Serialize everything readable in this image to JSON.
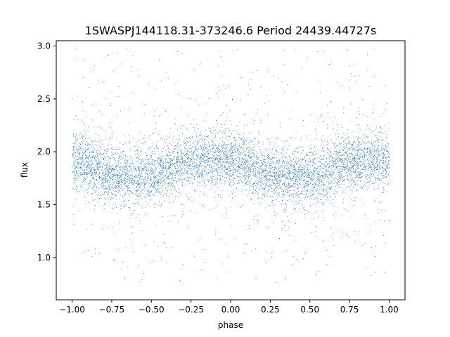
{
  "chart_data": {
    "type": "scatter",
    "title": "1SWASPJ144118.31-373246.6 Period 24439.44727s",
    "xlabel": "phase",
    "ylabel": "flux",
    "xlim": [
      -1.1,
      1.1
    ],
    "ylim": [
      0.6,
      3.05
    ],
    "xticks": [
      -1.0,
      -0.75,
      -0.5,
      -0.25,
      0.0,
      0.25,
      0.5,
      0.75,
      1.0
    ],
    "xtick_labels": [
      "−1.00",
      "−0.75",
      "−0.50",
      "−0.25",
      "0.00",
      "0.25",
      "0.50",
      "0.75",
      "1.00"
    ],
    "yticks": [
      1.0,
      1.5,
      2.0,
      2.5,
      3.0
    ],
    "ytick_labels": [
      "1.0",
      "1.5",
      "2.0",
      "2.5",
      "3.0"
    ],
    "series": [
      {
        "color": "#1f77b4",
        "marker": "point",
        "description_trend": "folded light curve: flux peaks near 1.92 at phase 0 and ±1, dips near 1.78 at phase ±0.5",
        "x": [
          -1.0,
          -0.95,
          -0.9,
          -0.85,
          -0.8,
          -0.75,
          -0.7,
          -0.65,
          -0.6,
          -0.55,
          -0.5,
          -0.45,
          -0.4,
          -0.35,
          -0.3,
          -0.25,
          -0.2,
          -0.15,
          -0.1,
          -0.05,
          0.0,
          0.05,
          0.1,
          0.15,
          0.2,
          0.25,
          0.3,
          0.35,
          0.4,
          0.45,
          0.5,
          0.55,
          0.6,
          0.65,
          0.7,
          0.75,
          0.8,
          0.85,
          0.9,
          0.95,
          1.0
        ],
        "y": [
          1.92,
          1.91,
          1.88,
          1.84,
          1.81,
          1.79,
          1.78,
          1.77,
          1.77,
          1.77,
          1.78,
          1.79,
          1.82,
          1.86,
          1.89,
          1.91,
          1.92,
          1.92,
          1.92,
          1.92,
          1.92,
          1.91,
          1.88,
          1.84,
          1.81,
          1.79,
          1.78,
          1.77,
          1.77,
          1.77,
          1.78,
          1.79,
          1.82,
          1.86,
          1.89,
          1.91,
          1.92,
          1.92,
          1.92,
          1.92,
          1.92
        ]
      }
    ]
  }
}
